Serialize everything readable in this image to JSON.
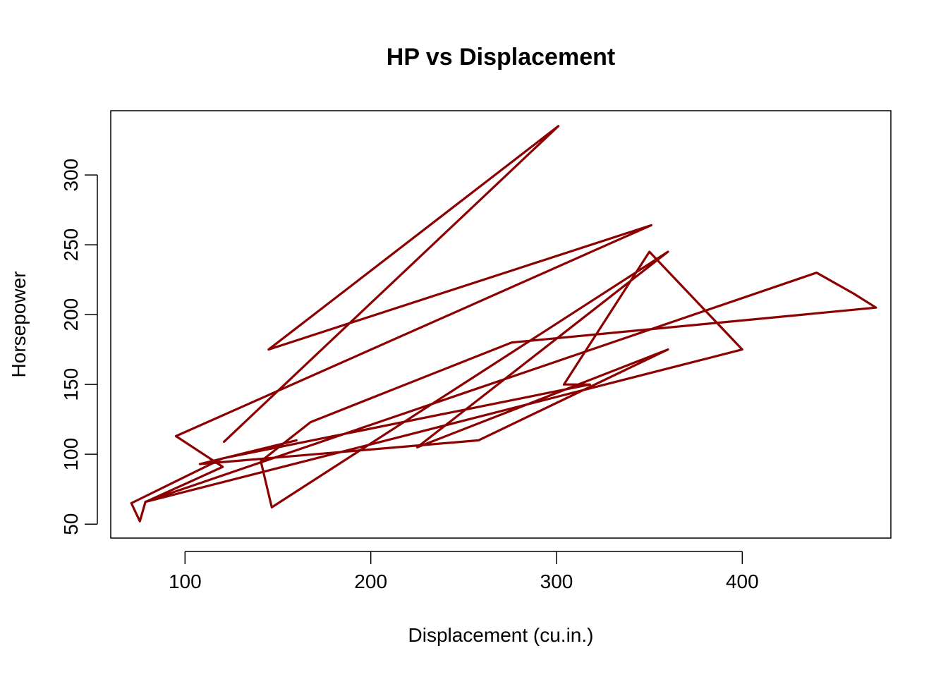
{
  "chart_data": {
    "type": "line",
    "title": "HP vs Displacement",
    "xlabel": "Displacement (cu.in.)",
    "ylabel": "Horsepower",
    "xlim": [
      60,
      480
    ],
    "ylim": [
      40,
      346
    ],
    "x_ticks": [
      100,
      200,
      300,
      400
    ],
    "y_ticks": [
      50,
      100,
      150,
      200,
      250,
      300
    ],
    "grid": false,
    "legend": "none",
    "line_color": "#8B0000",
    "series": [
      {
        "x": [
          160,
          160,
          108,
          258,
          360,
          225,
          360,
          146.7,
          140.8,
          167.6,
          167.6,
          275.8,
          275.8,
          275.8,
          472,
          460,
          440,
          78.7,
          75.7,
          71.1,
          120.1,
          318,
          304,
          350,
          400,
          79,
          120.3,
          95.1,
          351,
          145,
          301,
          121
        ],
        "y": [
          110,
          110,
          93,
          110,
          175,
          105,
          245,
          62,
          95,
          123,
          123,
          180,
          180,
          180,
          205,
          215,
          230,
          66,
          52,
          65,
          97,
          150,
          150,
          245,
          175,
          66,
          91,
          113,
          264,
          175,
          335,
          109
        ]
      }
    ]
  }
}
